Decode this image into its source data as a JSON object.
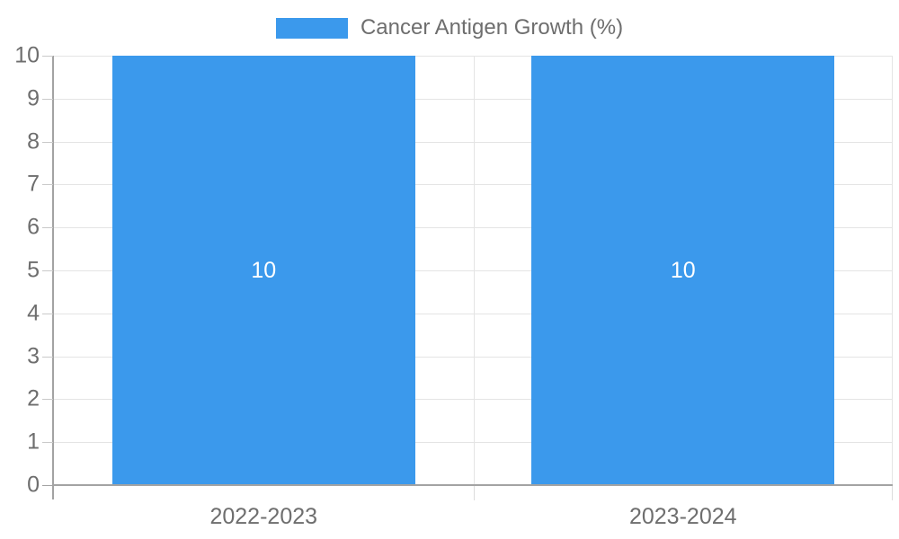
{
  "legend": {
    "label": "Cancer Antigen Growth (%)"
  },
  "colors": {
    "bar": "#3b99ec",
    "bar_value_text": "#ffffff",
    "grid": "#e4e4e4",
    "axis": "#a3a3a3",
    "tick": "#c9c9c9",
    "label_text": "#6e6e6e"
  },
  "chart_data": {
    "type": "bar",
    "title": "Cancer Antigen Growth (%)",
    "categories": [
      "2022-2023",
      "2023-2024"
    ],
    "values": [
      10,
      10
    ],
    "bar_value_labels": [
      "10",
      "10"
    ],
    "xlabel": "",
    "ylabel": "",
    "ylim": [
      0,
      10
    ],
    "yticks": [
      0,
      1,
      2,
      3,
      4,
      5,
      6,
      7,
      8,
      9,
      10
    ],
    "grid": true,
    "legend_position": "top"
  }
}
